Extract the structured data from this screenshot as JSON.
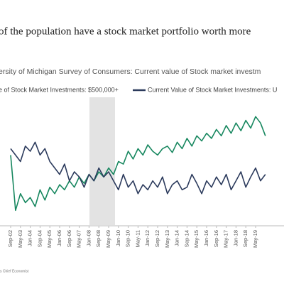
{
  "chart_data": {
    "type": "line",
    "title": "of the population have a stock market portfolio worth more",
    "subtitle": "ersity of Michigan Survey of Consumers: Current value of Stock market investm",
    "source": "s Chief Economist",
    "categories": [
      "Sep-02",
      null,
      "May-03",
      null,
      "Jan-04",
      null,
      "Sep-04",
      null,
      "May-05",
      null,
      "Jan-06",
      null,
      "Sep-06",
      null,
      "May-07",
      null,
      "Jan-08",
      null,
      "Sep-08",
      null,
      "May-09",
      null,
      "Jan-10",
      null,
      "Sep-10",
      null,
      "May-11",
      null,
      "Jan-12",
      null,
      "Sep-12",
      null,
      "May-13",
      null,
      "Jan-14",
      null,
      "Sep-14",
      null,
      "May-15",
      null,
      "Jan-16",
      null,
      "Sep-16",
      null,
      "May-17",
      null,
      "Jan-18",
      null,
      "Sep-18",
      null,
      "May-19",
      null,
      null
    ],
    "series": [
      {
        "name": "e of Stock Market Investments: $500,000+",
        "color": "#17875f",
        "values": [
          55,
          12,
          25,
          18,
          22,
          15,
          28,
          20,
          30,
          25,
          32,
          28,
          35,
          30,
          38,
          33,
          40,
          35,
          42,
          38,
          45,
          40,
          50,
          48,
          58,
          52,
          60,
          55,
          63,
          58,
          55,
          60,
          62,
          57,
          65,
          60,
          68,
          62,
          70,
          66,
          72,
          68,
          75,
          70,
          78,
          72,
          80,
          74,
          82,
          76,
          85,
          80,
          70
        ]
      },
      {
        "name": "Current Value of Stock Market Investments: U",
        "color": "#2b3a5c",
        "values": [
          60,
          55,
          50,
          62,
          58,
          65,
          55,
          60,
          50,
          45,
          40,
          48,
          35,
          42,
          38,
          30,
          40,
          35,
          45,
          38,
          42,
          35,
          28,
          40,
          30,
          35,
          25,
          32,
          28,
          35,
          30,
          38,
          25,
          32,
          35,
          28,
          30,
          40,
          33,
          25,
          35,
          30,
          38,
          32,
          40,
          28,
          35,
          42,
          30,
          38,
          45,
          35,
          40
        ]
      }
    ],
    "ylim": [
      0,
      100
    ]
  }
}
